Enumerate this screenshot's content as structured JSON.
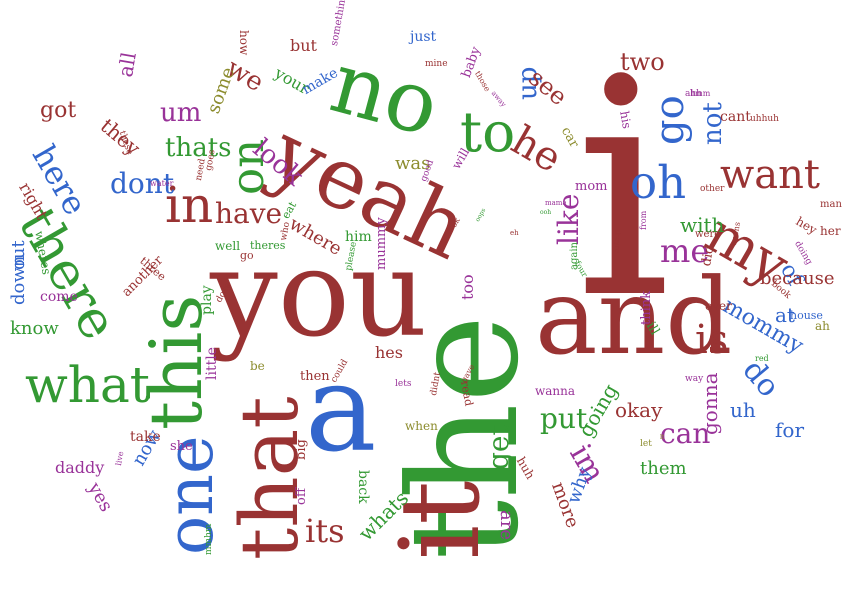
{
  "palette": {
    "red": "#993333",
    "green": "#339933",
    "blue": "#3366cc",
    "purple": "#993399",
    "olive": "#8c8c2e"
  },
  "words": [
    {
      "text": "the",
      "color": "green"
    },
    {
      "text": "i",
      "color": "red"
    },
    {
      "text": "you",
      "color": "red"
    },
    {
      "text": "and",
      "color": "red"
    },
    {
      "text": "yeah",
      "color": "red"
    },
    {
      "text": "no",
      "color": "green"
    },
    {
      "text": "it",
      "color": "red"
    },
    {
      "text": "a",
      "color": "blue"
    },
    {
      "text": "that",
      "color": "red"
    },
    {
      "text": "this",
      "color": "green"
    },
    {
      "text": "one",
      "color": "blue"
    },
    {
      "text": "there",
      "color": "green"
    },
    {
      "text": "what",
      "color": "green"
    },
    {
      "text": "to",
      "color": "green"
    },
    {
      "text": "in",
      "color": "red"
    },
    {
      "text": "on",
      "color": "green"
    },
    {
      "text": "my",
      "color": "red"
    },
    {
      "text": "oh",
      "color": "blue"
    },
    {
      "text": "go",
      "color": "blue"
    },
    {
      "text": "want",
      "color": "red"
    },
    {
      "text": "he",
      "color": "red"
    },
    {
      "text": "is",
      "color": "red"
    },
    {
      "text": "like",
      "color": "purple"
    },
    {
      "text": "me",
      "color": "purple"
    },
    {
      "text": "do",
      "color": "blue"
    },
    {
      "text": "mommy",
      "color": "blue"
    },
    {
      "text": "have",
      "color": "red"
    },
    {
      "text": "dont",
      "color": "blue"
    },
    {
      "text": "here",
      "color": "blue"
    },
    {
      "text": "its",
      "color": "red"
    },
    {
      "text": "im",
      "color": "purple"
    },
    {
      "text": "get",
      "color": "green"
    },
    {
      "text": "put",
      "color": "green"
    },
    {
      "text": "can",
      "color": "purple"
    },
    {
      "text": "look",
      "color": "purple"
    },
    {
      "text": "thats",
      "color": "green"
    },
    {
      "text": "um",
      "color": "purple"
    },
    {
      "text": "we",
      "color": "red"
    },
    {
      "text": "up",
      "color": "blue"
    },
    {
      "text": "see",
      "color": "red"
    },
    {
      "text": "not",
      "color": "blue"
    },
    {
      "text": "two",
      "color": "red"
    },
    {
      "text": "of",
      "color": "blue"
    },
    {
      "text": "because",
      "color": "red"
    },
    {
      "text": "at",
      "color": "blue"
    },
    {
      "text": "okay",
      "color": "red"
    },
    {
      "text": "gonna",
      "color": "purple"
    },
    {
      "text": "going",
      "color": "green"
    },
    {
      "text": "for",
      "color": "blue"
    },
    {
      "text": "uh",
      "color": "blue"
    },
    {
      "text": "whats",
      "color": "green"
    },
    {
      "text": "why",
      "color": "blue"
    },
    {
      "text": "more",
      "color": "red"
    },
    {
      "text": "are",
      "color": "purple"
    },
    {
      "text": "them",
      "color": "green"
    },
    {
      "text": "was",
      "color": "olive"
    },
    {
      "text": "with",
      "color": "green"
    },
    {
      "text": "where",
      "color": "red"
    },
    {
      "text": "out",
      "color": "blue"
    },
    {
      "text": "down",
      "color": "blue"
    },
    {
      "text": "know",
      "color": "green"
    },
    {
      "text": "yes",
      "color": "purple"
    },
    {
      "text": "now",
      "color": "blue"
    },
    {
      "text": "daddy",
      "color": "purple"
    },
    {
      "text": "got",
      "color": "red"
    },
    {
      "text": "they",
      "color": "red"
    },
    {
      "text": "all",
      "color": "purple"
    },
    {
      "text": "some",
      "color": "olive"
    },
    {
      "text": "your",
      "color": "green"
    },
    {
      "text": "but",
      "color": "red"
    },
    {
      "text": "make",
      "color": "blue"
    },
    {
      "text": "right",
      "color": "red"
    },
    {
      "text": "come",
      "color": "purple"
    },
    {
      "text": "wheres",
      "color": "green"
    },
    {
      "text": "hes",
      "color": "red"
    },
    {
      "text": "mom",
      "color": "purple"
    },
    {
      "text": "will",
      "color": "purple"
    },
    {
      "text": "just",
      "color": "blue"
    },
    {
      "text": "baby",
      "color": "purple"
    },
    {
      "text": "how",
      "color": "red"
    },
    {
      "text": "something",
      "color": "purple"
    },
    {
      "text": "cant",
      "color": "red"
    },
    {
      "text": "his",
      "color": "purple"
    },
    {
      "text": "car",
      "color": "olive"
    },
    {
      "text": "house",
      "color": "blue"
    },
    {
      "text": "ah",
      "color": "olive"
    },
    {
      "text": "her",
      "color": "red"
    },
    {
      "text": "hey",
      "color": "red"
    },
    {
      "text": "too",
      "color": "purple"
    },
    {
      "text": "him",
      "color": "green"
    },
    {
      "text": "did",
      "color": "red"
    },
    {
      "text": "over",
      "color": "red"
    },
    {
      "text": "think",
      "color": "purple"
    },
    {
      "text": "ill",
      "color": "green"
    },
    {
      "text": "well",
      "color": "green"
    },
    {
      "text": "play",
      "color": "green"
    },
    {
      "text": "take",
      "color": "red"
    },
    {
      "text": "she",
      "color": "purple"
    },
    {
      "text": "little",
      "color": "purple"
    },
    {
      "text": "be",
      "color": "olive"
    },
    {
      "text": "then",
      "color": "red"
    },
    {
      "text": "big",
      "color": "red"
    },
    {
      "text": "off",
      "color": "purple"
    },
    {
      "text": "back",
      "color": "green"
    },
    {
      "text": "when",
      "color": "olive"
    },
    {
      "text": "wanna",
      "color": "purple"
    },
    {
      "text": "huh",
      "color": "red"
    },
    {
      "text": "mmhm",
      "color": "green"
    },
    {
      "text": "mummy",
      "color": "purple"
    },
    {
      "text": "please",
      "color": "green"
    },
    {
      "text": "eat",
      "color": "green"
    },
    {
      "text": "another",
      "color": "red"
    },
    {
      "text": "three",
      "color": "red"
    },
    {
      "text": "theres",
      "color": "green"
    },
    {
      "text": "go",
      "color": "red"
    },
    {
      "text": "who",
      "color": "red"
    },
    {
      "text": "didnt",
      "color": "red"
    },
    {
      "text": "lets",
      "color": "purple"
    },
    {
      "text": "read",
      "color": "red"
    },
    {
      "text": "again",
      "color": "green"
    },
    {
      "text": "way",
      "color": "purple"
    },
    {
      "text": "red",
      "color": "green"
    },
    {
      "text": "let",
      "color": "olive"
    },
    {
      "text": "these",
      "color": "red"
    },
    {
      "text": "need",
      "color": "red"
    },
    {
      "text": "water",
      "color": "purple"
    },
    {
      "text": "good",
      "color": "purple"
    },
    {
      "text": "mine",
      "color": "red"
    },
    {
      "text": "other",
      "color": "red"
    },
    {
      "text": "uhhuh",
      "color": "red"
    },
    {
      "text": "ahh",
      "color": "purple"
    },
    {
      "text": "man",
      "color": "red"
    },
    {
      "text": "doing",
      "color": "purple"
    },
    {
      "text": "book",
      "color": "red"
    },
    {
      "text": "opens",
      "color": "red"
    },
    {
      "text": "were",
      "color": "red"
    },
    {
      "text": "hmm",
      "color": "purple"
    },
    {
      "text": "live",
      "color": "purple"
    },
    {
      "text": "could",
      "color": "red"
    },
    {
      "text": "gave",
      "color": "red"
    },
    {
      "text": "does",
      "color": "red"
    },
    {
      "text": "goes",
      "color": "red"
    },
    {
      "text": "those",
      "color": "red"
    },
    {
      "text": "away",
      "color": "purple"
    },
    {
      "text": "mama",
      "color": "purple"
    },
    {
      "text": "from",
      "color": "purple"
    },
    {
      "text": "theyre",
      "color": "red"
    },
    {
      "text": "four",
      "color": "green"
    },
    {
      "text": "ok",
      "color": "red"
    },
    {
      "text": "eh",
      "color": "red"
    },
    {
      "text": "lt",
      "color": "olive"
    },
    {
      "text": "oops",
      "color": "green"
    },
    {
      "text": "ooh",
      "color": "green"
    }
  ]
}
